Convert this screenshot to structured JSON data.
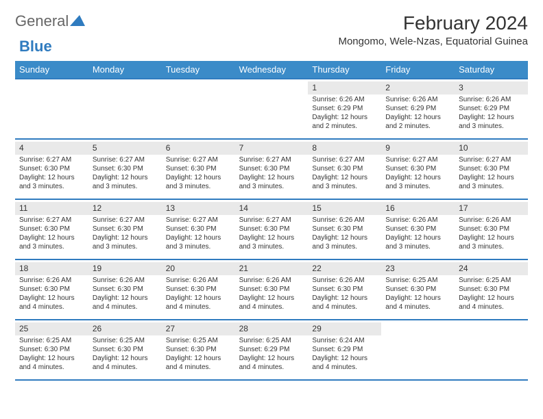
{
  "logo": {
    "general": "General",
    "blue": "Blue"
  },
  "title": "February 2024",
  "location": "Mongomo, Wele-Nzas, Equatorial Guinea",
  "colors": {
    "header_bg": "#3b8bc8",
    "header_text": "#ffffff",
    "week_line": "#2f7bbf",
    "daynum_bg": "#e9e9e9",
    "text": "#333333",
    "logo_gray": "#666666",
    "logo_blue": "#2f7bbf",
    "background": "#ffffff"
  },
  "day_names": [
    "Sunday",
    "Monday",
    "Tuesday",
    "Wednesday",
    "Thursday",
    "Friday",
    "Saturday"
  ],
  "weeks": [
    [
      null,
      null,
      null,
      null,
      {
        "n": "1",
        "sr": "Sunrise: 6:26 AM",
        "ss": "Sunset: 6:29 PM",
        "dl1": "Daylight: 12 hours",
        "dl2": "and 2 minutes."
      },
      {
        "n": "2",
        "sr": "Sunrise: 6:26 AM",
        "ss": "Sunset: 6:29 PM",
        "dl1": "Daylight: 12 hours",
        "dl2": "and 2 minutes."
      },
      {
        "n": "3",
        "sr": "Sunrise: 6:26 AM",
        "ss": "Sunset: 6:29 PM",
        "dl1": "Daylight: 12 hours",
        "dl2": "and 3 minutes."
      }
    ],
    [
      {
        "n": "4",
        "sr": "Sunrise: 6:27 AM",
        "ss": "Sunset: 6:30 PM",
        "dl1": "Daylight: 12 hours",
        "dl2": "and 3 minutes."
      },
      {
        "n": "5",
        "sr": "Sunrise: 6:27 AM",
        "ss": "Sunset: 6:30 PM",
        "dl1": "Daylight: 12 hours",
        "dl2": "and 3 minutes."
      },
      {
        "n": "6",
        "sr": "Sunrise: 6:27 AM",
        "ss": "Sunset: 6:30 PM",
        "dl1": "Daylight: 12 hours",
        "dl2": "and 3 minutes."
      },
      {
        "n": "7",
        "sr": "Sunrise: 6:27 AM",
        "ss": "Sunset: 6:30 PM",
        "dl1": "Daylight: 12 hours",
        "dl2": "and 3 minutes."
      },
      {
        "n": "8",
        "sr": "Sunrise: 6:27 AM",
        "ss": "Sunset: 6:30 PM",
        "dl1": "Daylight: 12 hours",
        "dl2": "and 3 minutes."
      },
      {
        "n": "9",
        "sr": "Sunrise: 6:27 AM",
        "ss": "Sunset: 6:30 PM",
        "dl1": "Daylight: 12 hours",
        "dl2": "and 3 minutes."
      },
      {
        "n": "10",
        "sr": "Sunrise: 6:27 AM",
        "ss": "Sunset: 6:30 PM",
        "dl1": "Daylight: 12 hours",
        "dl2": "and 3 minutes."
      }
    ],
    [
      {
        "n": "11",
        "sr": "Sunrise: 6:27 AM",
        "ss": "Sunset: 6:30 PM",
        "dl1": "Daylight: 12 hours",
        "dl2": "and 3 minutes."
      },
      {
        "n": "12",
        "sr": "Sunrise: 6:27 AM",
        "ss": "Sunset: 6:30 PM",
        "dl1": "Daylight: 12 hours",
        "dl2": "and 3 minutes."
      },
      {
        "n": "13",
        "sr": "Sunrise: 6:27 AM",
        "ss": "Sunset: 6:30 PM",
        "dl1": "Daylight: 12 hours",
        "dl2": "and 3 minutes."
      },
      {
        "n": "14",
        "sr": "Sunrise: 6:27 AM",
        "ss": "Sunset: 6:30 PM",
        "dl1": "Daylight: 12 hours",
        "dl2": "and 3 minutes."
      },
      {
        "n": "15",
        "sr": "Sunrise: 6:26 AM",
        "ss": "Sunset: 6:30 PM",
        "dl1": "Daylight: 12 hours",
        "dl2": "and 3 minutes."
      },
      {
        "n": "16",
        "sr": "Sunrise: 6:26 AM",
        "ss": "Sunset: 6:30 PM",
        "dl1": "Daylight: 12 hours",
        "dl2": "and 3 minutes."
      },
      {
        "n": "17",
        "sr": "Sunrise: 6:26 AM",
        "ss": "Sunset: 6:30 PM",
        "dl1": "Daylight: 12 hours",
        "dl2": "and 3 minutes."
      }
    ],
    [
      {
        "n": "18",
        "sr": "Sunrise: 6:26 AM",
        "ss": "Sunset: 6:30 PM",
        "dl1": "Daylight: 12 hours",
        "dl2": "and 4 minutes."
      },
      {
        "n": "19",
        "sr": "Sunrise: 6:26 AM",
        "ss": "Sunset: 6:30 PM",
        "dl1": "Daylight: 12 hours",
        "dl2": "and 4 minutes."
      },
      {
        "n": "20",
        "sr": "Sunrise: 6:26 AM",
        "ss": "Sunset: 6:30 PM",
        "dl1": "Daylight: 12 hours",
        "dl2": "and 4 minutes."
      },
      {
        "n": "21",
        "sr": "Sunrise: 6:26 AM",
        "ss": "Sunset: 6:30 PM",
        "dl1": "Daylight: 12 hours",
        "dl2": "and 4 minutes."
      },
      {
        "n": "22",
        "sr": "Sunrise: 6:26 AM",
        "ss": "Sunset: 6:30 PM",
        "dl1": "Daylight: 12 hours",
        "dl2": "and 4 minutes."
      },
      {
        "n": "23",
        "sr": "Sunrise: 6:25 AM",
        "ss": "Sunset: 6:30 PM",
        "dl1": "Daylight: 12 hours",
        "dl2": "and 4 minutes."
      },
      {
        "n": "24",
        "sr": "Sunrise: 6:25 AM",
        "ss": "Sunset: 6:30 PM",
        "dl1": "Daylight: 12 hours",
        "dl2": "and 4 minutes."
      }
    ],
    [
      {
        "n": "25",
        "sr": "Sunrise: 6:25 AM",
        "ss": "Sunset: 6:30 PM",
        "dl1": "Daylight: 12 hours",
        "dl2": "and 4 minutes."
      },
      {
        "n": "26",
        "sr": "Sunrise: 6:25 AM",
        "ss": "Sunset: 6:30 PM",
        "dl1": "Daylight: 12 hours",
        "dl2": "and 4 minutes."
      },
      {
        "n": "27",
        "sr": "Sunrise: 6:25 AM",
        "ss": "Sunset: 6:30 PM",
        "dl1": "Daylight: 12 hours",
        "dl2": "and 4 minutes."
      },
      {
        "n": "28",
        "sr": "Sunrise: 6:25 AM",
        "ss": "Sunset: 6:29 PM",
        "dl1": "Daylight: 12 hours",
        "dl2": "and 4 minutes."
      },
      {
        "n": "29",
        "sr": "Sunrise: 6:24 AM",
        "ss": "Sunset: 6:29 PM",
        "dl1": "Daylight: 12 hours",
        "dl2": "and 4 minutes."
      },
      null,
      null
    ]
  ]
}
